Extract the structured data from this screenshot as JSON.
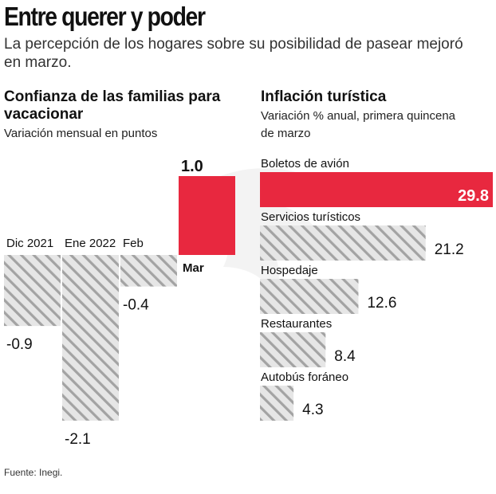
{
  "header": {
    "title": "Entre querer y poder",
    "subtitle": "La percepción de los hogares sobre su posibilidad de pasear mejoró en marzo."
  },
  "colors": {
    "highlight": "#e8283f",
    "neutral": "#a3a3a3",
    "hatch": "#e6e6e6",
    "text": "#111111"
  },
  "chart_data": [
    {
      "type": "bar",
      "orientation": "vertical",
      "title": "Confianza de las familias para vacacionar",
      "subtitle": "Variación mensual en puntos",
      "categories": [
        "Dic 2021",
        "Ene 2022",
        "Feb",
        "Mar"
      ],
      "values": [
        -0.9,
        -2.1,
        -0.4,
        1.0
      ],
      "value_labels": [
        "-0.9",
        "-2.1",
        "-0.4",
        "1.0"
      ],
      "highlight": [
        false,
        false,
        false,
        true
      ],
      "ylim": [
        -2.1,
        1.0
      ]
    },
    {
      "type": "bar",
      "orientation": "horizontal",
      "title": "Inflación turística",
      "subtitle": "Variación % anual, primera quincena de marzo",
      "categories": [
        "Boletos de avión",
        "Servicios turísticos",
        "Hospedaje",
        "Restaurantes",
        "Autobús foráneo"
      ],
      "values": [
        29.8,
        21.2,
        12.6,
        8.4,
        4.3
      ],
      "value_labels": [
        "29.8",
        "21.2",
        "12.6",
        "8.4",
        "4.3"
      ],
      "highlight": [
        true,
        false,
        false,
        false,
        false
      ],
      "xlim": [
        0,
        29.8
      ]
    }
  ],
  "source": "Fuente: Inegi."
}
